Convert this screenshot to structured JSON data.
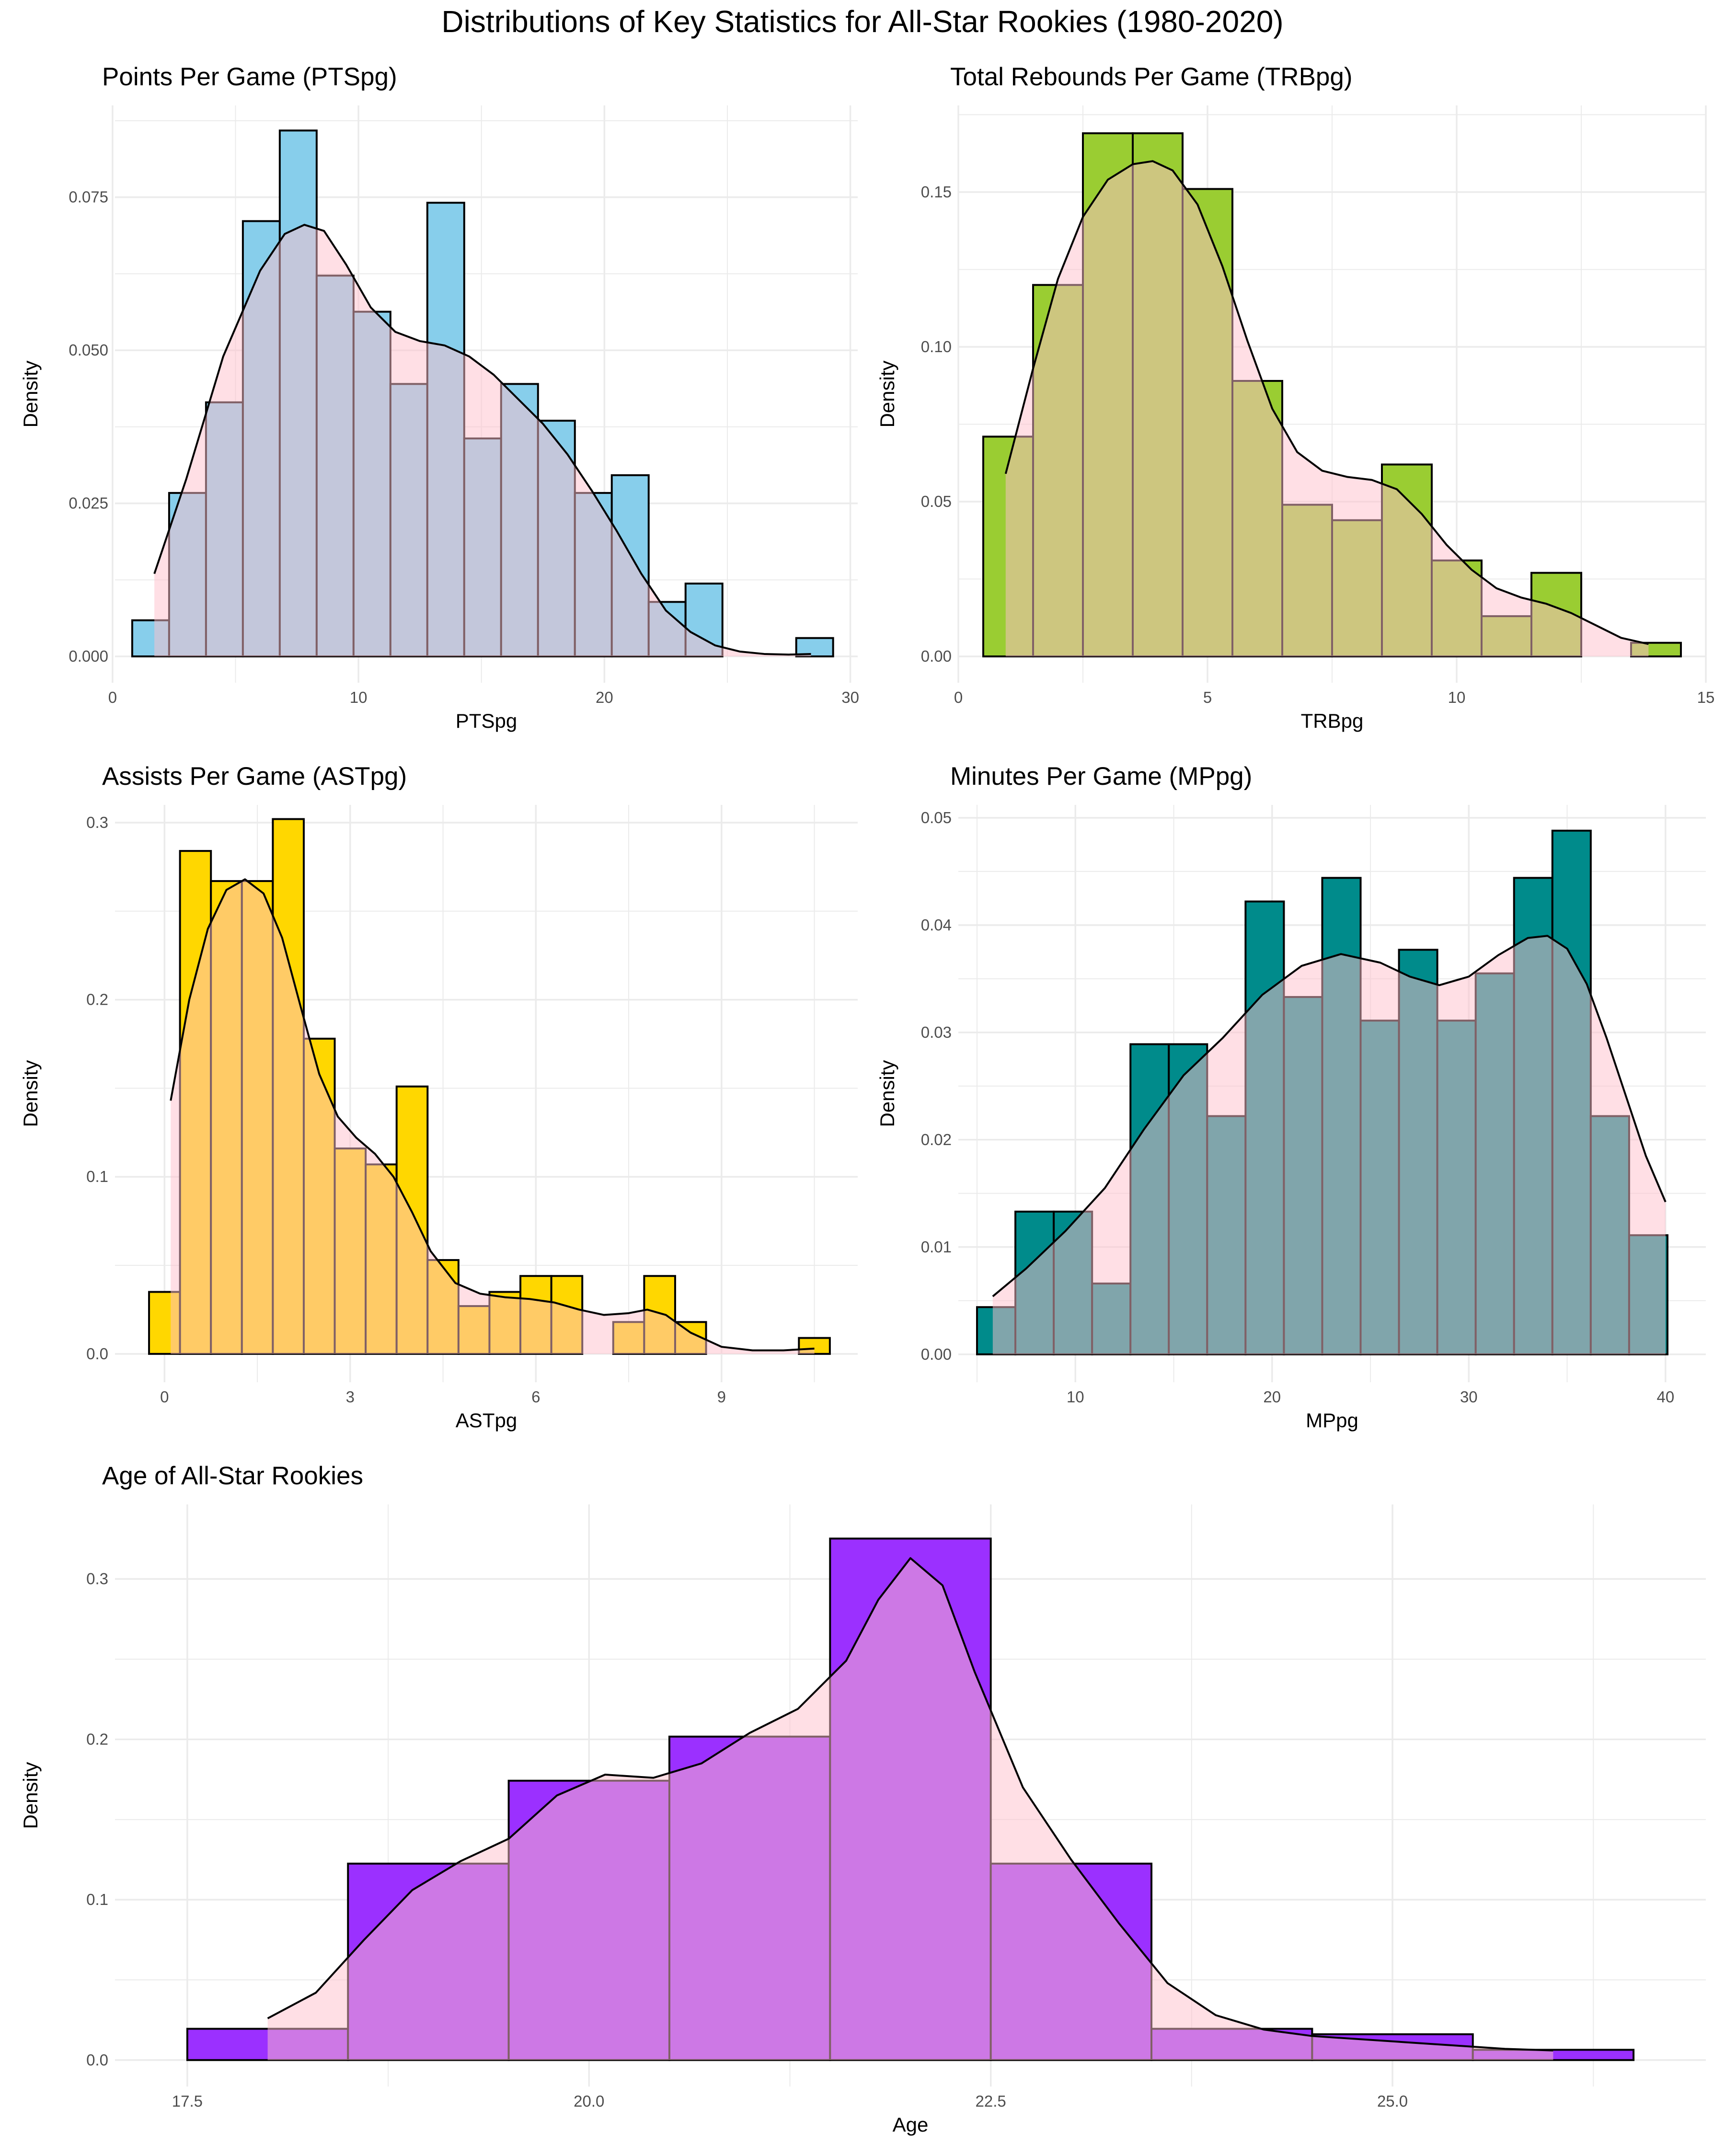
{
  "title": "Distributions of Key Statistics for All-Star Rookies (1980-2020)",
  "colors": {
    "density_fill": "#ffc0cb",
    "grid": "#ebebeb",
    "outline": "#000000"
  },
  "chart_data": [
    {
      "id": "pts",
      "type": "bar",
      "title": "Points Per Game (PTSpg)",
      "xlabel": "PTSpg",
      "ylabel": "Density",
      "fill": "#87ceeb",
      "xlim": [
        0.1,
        30.3
      ],
      "ylim": [
        -0.0043,
        0.09
      ],
      "xticks": [
        0,
        10,
        20,
        30
      ],
      "xtick_labels": [
        "0",
        "10",
        "20",
        "30"
      ],
      "xticks_minor": [
        5,
        15,
        25
      ],
      "yticks": [
        0.0,
        0.025,
        0.05,
        0.075
      ],
      "ytick_labels": [
        "0.000",
        "0.025",
        "0.050",
        "0.075"
      ],
      "yticks_minor": [
        0.0125,
        0.0375,
        0.0625,
        0.0875
      ],
      "bin_width": 1.5,
      "bins": [
        {
          "x": 0.8,
          "y": 0.0059
        },
        {
          "x": 2.3,
          "y": 0.0267
        },
        {
          "x": 3.8,
          "y": 0.0415
        },
        {
          "x": 5.3,
          "y": 0.0711
        },
        {
          "x": 6.8,
          "y": 0.0859
        },
        {
          "x": 8.3,
          "y": 0.0622
        },
        {
          "x": 9.8,
          "y": 0.0563
        },
        {
          "x": 11.3,
          "y": 0.0445
        },
        {
          "x": 12.8,
          "y": 0.0741
        },
        {
          "x": 14.3,
          "y": 0.0356
        },
        {
          "x": 15.8,
          "y": 0.0445
        },
        {
          "x": 17.3,
          "y": 0.0385
        },
        {
          "x": 18.8,
          "y": 0.0267
        },
        {
          "x": 20.3,
          "y": 0.0296
        },
        {
          "x": 21.8,
          "y": 0.0089
        },
        {
          "x": 23.3,
          "y": 0.0119
        },
        {
          "x": 24.8,
          "y": 0.0
        },
        {
          "x": 26.3,
          "y": 0.0
        },
        {
          "x": 27.8,
          "y": 0.003
        }
      ],
      "density": {
        "x": [
          1.7,
          3.0,
          4.5,
          6.0,
          7.0,
          7.8,
          8.6,
          9.5,
          10.5,
          11.5,
          12.5,
          13.5,
          14.5,
          15.5,
          16.5,
          17.5,
          18.5,
          19.5,
          20.5,
          21.5,
          22.5,
          23.5,
          24.5,
          25.5,
          26.5,
          27.5,
          28.4
        ],
        "y": [
          0.0135,
          0.029,
          0.049,
          0.063,
          0.069,
          0.0705,
          0.0695,
          0.064,
          0.057,
          0.053,
          0.0515,
          0.0508,
          0.049,
          0.046,
          0.042,
          0.038,
          0.033,
          0.027,
          0.0205,
          0.0135,
          0.0075,
          0.004,
          0.0018,
          0.0008,
          0.0004,
          0.0003,
          0.0004
        ]
      }
    },
    {
      "id": "trb",
      "type": "bar",
      "title": "Total Rebounds Per Game (TRBpg)",
      "xlabel": "TRBpg",
      "ylabel": "Density",
      "fill": "#9acd32",
      "xlim": [
        0,
        15
      ],
      "ylim": [
        -0.0085,
        0.178
      ],
      "xticks": [
        0,
        5,
        10,
        15
      ],
      "xtick_labels": [
        "0",
        "5",
        "10",
        "15"
      ],
      "xticks_minor": [
        2.5,
        7.5,
        12.5
      ],
      "yticks": [
        0.0,
        0.05,
        0.1,
        0.15
      ],
      "ytick_labels": [
        "0.00",
        "0.05",
        "0.10",
        "0.15"
      ],
      "yticks_minor": [
        0.025,
        0.075,
        0.125,
        0.175
      ],
      "bin_width": 1.0,
      "bins": [
        {
          "x": 0.5,
          "y": 0.071
        },
        {
          "x": 1.5,
          "y": 0.12
        },
        {
          "x": 2.5,
          "y": 0.169
        },
        {
          "x": 3.5,
          "y": 0.169
        },
        {
          "x": 4.5,
          "y": 0.151
        },
        {
          "x": 5.5,
          "y": 0.089
        },
        {
          "x": 6.5,
          "y": 0.049
        },
        {
          "x": 7.5,
          "y": 0.044
        },
        {
          "x": 8.5,
          "y": 0.062
        },
        {
          "x": 9.5,
          "y": 0.031
        },
        {
          "x": 10.5,
          "y": 0.013
        },
        {
          "x": 11.5,
          "y": 0.027
        },
        {
          "x": 12.5,
          "y": 0.0
        },
        {
          "x": 13.5,
          "y": 0.0044
        }
      ],
      "density": {
        "x": [
          0.95,
          1.5,
          2.0,
          2.5,
          3.0,
          3.5,
          3.9,
          4.3,
          4.8,
          5.3,
          5.8,
          6.3,
          6.8,
          7.3,
          7.8,
          8.3,
          8.8,
          9.3,
          9.8,
          10.3,
          10.8,
          11.3,
          11.8,
          12.3,
          12.8,
          13.3,
          13.85
        ],
        "y": [
          0.059,
          0.093,
          0.122,
          0.142,
          0.154,
          0.159,
          0.16,
          0.157,
          0.146,
          0.126,
          0.102,
          0.08,
          0.066,
          0.06,
          0.058,
          0.057,
          0.054,
          0.046,
          0.036,
          0.028,
          0.022,
          0.019,
          0.017,
          0.014,
          0.01,
          0.006,
          0.004
        ]
      }
    },
    {
      "id": "ast",
      "type": "bar",
      "title": "Assists Per Game (ASTpg)",
      "xlabel": "ASTpg",
      "ylabel": "Density",
      "fill": "#ffd700",
      "xlim": [
        -0.8,
        11.2
      ],
      "ylim": [
        -0.016,
        0.31
      ],
      "xticks": [
        0,
        3,
        6,
        9
      ],
      "xtick_labels": [
        "0",
        "3",
        "6",
        "9"
      ],
      "xticks_minor": [
        1.5,
        4.5,
        7.5,
        10.5
      ],
      "yticks": [
        0.0,
        0.1,
        0.2,
        0.3
      ],
      "ytick_labels": [
        "0.0",
        "0.1",
        "0.2",
        "0.3"
      ],
      "yticks_minor": [
        0.05,
        0.15,
        0.25
      ],
      "bin_width": 0.5,
      "bins": [
        {
          "x": -0.25,
          "y": 0.035
        },
        {
          "x": 0.25,
          "y": 0.284
        },
        {
          "x": 0.75,
          "y": 0.267
        },
        {
          "x": 1.25,
          "y": 0.267
        },
        {
          "x": 1.75,
          "y": 0.302
        },
        {
          "x": 2.25,
          "y": 0.178
        },
        {
          "x": 2.75,
          "y": 0.116
        },
        {
          "x": 3.25,
          "y": 0.107
        },
        {
          "x": 3.75,
          "y": 0.151
        },
        {
          "x": 4.25,
          "y": 0.053
        },
        {
          "x": 4.75,
          "y": 0.027
        },
        {
          "x": 5.25,
          "y": 0.035
        },
        {
          "x": 5.75,
          "y": 0.044
        },
        {
          "x": 6.25,
          "y": 0.044
        },
        {
          "x": 6.75,
          "y": 0.0
        },
        {
          "x": 7.25,
          "y": 0.018
        },
        {
          "x": 7.75,
          "y": 0.044
        },
        {
          "x": 8.25,
          "y": 0.018
        },
        {
          "x": 8.75,
          "y": 0.0
        },
        {
          "x": 9.25,
          "y": 0.0
        },
        {
          "x": 9.75,
          "y": 0.0
        },
        {
          "x": 10.25,
          "y": 0.009
        }
      ],
      "density": {
        "x": [
          0.1,
          0.4,
          0.7,
          1.0,
          1.3,
          1.6,
          1.9,
          2.2,
          2.5,
          2.8,
          3.1,
          3.4,
          3.7,
          4.0,
          4.3,
          4.7,
          5.1,
          5.5,
          5.9,
          6.3,
          6.7,
          7.1,
          7.5,
          7.8,
          8.1,
          8.5,
          9.0,
          9.5,
          10.0,
          10.5
        ],
        "y": [
          0.143,
          0.2,
          0.24,
          0.262,
          0.268,
          0.26,
          0.235,
          0.196,
          0.158,
          0.134,
          0.122,
          0.113,
          0.1,
          0.08,
          0.058,
          0.04,
          0.034,
          0.032,
          0.031,
          0.029,
          0.025,
          0.022,
          0.023,
          0.025,
          0.022,
          0.012,
          0.004,
          0.002,
          0.002,
          0.003
        ]
      }
    },
    {
      "id": "mp",
      "type": "bar",
      "title": "Minutes Per Game (MPpg)",
      "xlabel": "MPpg",
      "ylabel": "Density",
      "fill": "#008b8b",
      "xlim": [
        4.05,
        42.05
      ],
      "ylim": [
        -0.0026,
        0.0512
      ],
      "xticks": [
        10,
        20,
        30,
        40
      ],
      "xtick_labels": [
        "10",
        "20",
        "30",
        "40"
      ],
      "xticks_minor": [
        5,
        15,
        25,
        35
      ],
      "yticks": [
        0.0,
        0.01,
        0.02,
        0.03,
        0.04,
        0.05
      ],
      "ytick_labels": [
        "0.00",
        "0.01",
        "0.02",
        "0.03",
        "0.04",
        "0.05"
      ],
      "yticks_minor": [
        0.005,
        0.015,
        0.025,
        0.035,
        0.045
      ],
      "bin_width": 1.95,
      "bins": [
        {
          "x": 5.0,
          "y": 0.0044
        },
        {
          "x": 6.95,
          "y": 0.0133
        },
        {
          "x": 8.9,
          "y": 0.0133
        },
        {
          "x": 10.85,
          "y": 0.0066
        },
        {
          "x": 12.8,
          "y": 0.0289
        },
        {
          "x": 14.75,
          "y": 0.0289
        },
        {
          "x": 16.7,
          "y": 0.0222
        },
        {
          "x": 18.65,
          "y": 0.0422
        },
        {
          "x": 20.6,
          "y": 0.0333
        },
        {
          "x": 22.55,
          "y": 0.0444
        },
        {
          "x": 24.5,
          "y": 0.0311
        },
        {
          "x": 26.45,
          "y": 0.0377
        },
        {
          "x": 28.4,
          "y": 0.0311
        },
        {
          "x": 30.35,
          "y": 0.0355
        },
        {
          "x": 32.3,
          "y": 0.0444
        },
        {
          "x": 34.25,
          "y": 0.0488
        },
        {
          "x": 36.2,
          "y": 0.0222
        },
        {
          "x": 38.15,
          "y": 0.0111
        }
      ],
      "density": {
        "x": [
          5.8,
          7.5,
          9.5,
          11.5,
          13.5,
          15.5,
          17.5,
          19.5,
          21.5,
          23.5,
          25.5,
          27.0,
          28.5,
          30.0,
          31.5,
          33.0,
          34.0,
          35.0,
          36.0,
          37.0,
          38.0,
          39.0,
          40.0
        ],
        "y": [
          0.0054,
          0.008,
          0.0115,
          0.0155,
          0.021,
          0.026,
          0.0295,
          0.0335,
          0.0362,
          0.0373,
          0.0365,
          0.0352,
          0.0344,
          0.0352,
          0.0372,
          0.0388,
          0.039,
          0.0378,
          0.0345,
          0.0295,
          0.024,
          0.0185,
          0.0142
        ]
      }
    },
    {
      "id": "age",
      "type": "bar",
      "title": "Age of All-Star Rookies",
      "xlabel": "Age",
      "ylabel": "Density",
      "fill": "#9b30ff",
      "xlim": [
        17.05,
        26.95
      ],
      "ylim": [
        -0.0165,
        0.3465
      ],
      "xticks": [
        17.5,
        20.0,
        22.5,
        25.0
      ],
      "xtick_labels": [
        "17.5",
        "20.0",
        "22.5",
        "25.0"
      ],
      "xticks_minor": [
        18.75,
        21.25,
        23.75,
        26.25
      ],
      "yticks": [
        0.0,
        0.1,
        0.2,
        0.3
      ],
      "ytick_labels": [
        "0.0",
        "0.1",
        "0.2",
        "0.3"
      ],
      "yticks_minor": [
        0.05,
        0.15,
        0.25
      ],
      "bin_width": 1.0,
      "bins": [
        {
          "x": 17.5,
          "y": 0.0195
        },
        {
          "x": 18.5,
          "y": 0.1225
        },
        {
          "x": 19.5,
          "y": 0.1742
        },
        {
          "x": 20.5,
          "y": 0.2017
        },
        {
          "x": 21.5,
          "y": 0.3252
        },
        {
          "x": 22.5,
          "y": 0.1225
        },
        {
          "x": 23.5,
          "y": 0.0195
        },
        {
          "x": 24.5,
          "y": 0.0161
        },
        {
          "x": 25.5,
          "y": 0.0064
        }
      ],
      "density": {
        "x": [
          18.0,
          18.3,
          18.6,
          18.9,
          19.2,
          19.5,
          19.8,
          20.1,
          20.4,
          20.7,
          21.0,
          21.3,
          21.6,
          21.8,
          22.0,
          22.2,
          22.4,
          22.7,
          23.0,
          23.3,
          23.6,
          23.9,
          24.2,
          24.5,
          24.8,
          25.1,
          25.4,
          25.7,
          26.0
        ],
        "y": [
          0.026,
          0.042,
          0.075,
          0.106,
          0.124,
          0.138,
          0.165,
          0.178,
          0.176,
          0.185,
          0.204,
          0.219,
          0.249,
          0.287,
          0.313,
          0.296,
          0.242,
          0.17,
          0.125,
          0.085,
          0.048,
          0.028,
          0.019,
          0.015,
          0.013,
          0.011,
          0.009,
          0.007,
          0.006
        ]
      }
    }
  ]
}
